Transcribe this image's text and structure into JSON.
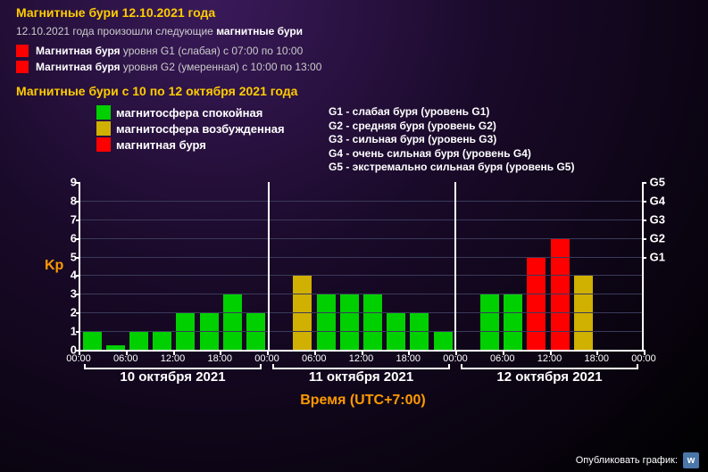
{
  "title_main": "Магнитные бури 12.10.2021 года",
  "intro_prefix": "12.10.2021 года произошли следующие ",
  "intro_bold": "магнитные бури",
  "events": [
    {
      "color": "#ff0000",
      "bold": "Магнитная буря",
      "rest": " уровня G1 (слабая) с 07:00 по 10:00"
    },
    {
      "color": "#ff0000",
      "bold": "Магнитная буря",
      "rest": " уровня G2 (умеренная) с 10:00 по 13:00"
    }
  ],
  "subtitle": "Магнитные бури с 10 по 12 октября 2021 года",
  "legend_left": [
    {
      "color": "#00d000",
      "label": "магнитосфера спокойная"
    },
    {
      "color": "#d0b000",
      "label": "магнитосфера возбужденная"
    },
    {
      "color": "#ff0000",
      "label": "магнитная буря"
    }
  ],
  "legend_right": [
    "G1 - слабая буря (уровень G1)",
    "G2 - средняя буря (уровень G2)",
    "G3 - сильная буря (уровень G3)",
    "G4 - очень сильная буря (уровень G4)",
    "G5 - экстремально сильная буря (уровень G5)"
  ],
  "chart": {
    "type": "bar",
    "y_label": "Kp",
    "x_label": "Время (UTC+7:00)",
    "y_max": 9,
    "y_ticks": [
      0,
      1,
      2,
      3,
      4,
      5,
      6,
      7,
      8,
      9
    ],
    "g_ticks": [
      {
        "v": 5,
        "label": "G1"
      },
      {
        "v": 6,
        "label": "G2"
      },
      {
        "v": 7,
        "label": "G3"
      },
      {
        "v": 8,
        "label": "G4"
      },
      {
        "v": 9,
        "label": "G5"
      }
    ],
    "grid_color": "#3a3a5a",
    "axis_color": "#ffffff",
    "kp_label_color": "#ff9900",
    "days": 3,
    "day_labels": [
      "10 октября 2021",
      "11 октября 2021",
      "12 октября 2021"
    ],
    "hour_ticks": [
      "00:00",
      "06:00",
      "12:00",
      "18:00",
      "00:00",
      "06:00",
      "12:00",
      "18:00",
      "00:00",
      "06:00",
      "12:00",
      "18:00",
      "00:00"
    ],
    "bars": [
      {
        "v": 1.0,
        "c": "#00d000"
      },
      {
        "v": 0.25,
        "c": "#00d000"
      },
      {
        "v": 1.0,
        "c": "#00d000"
      },
      {
        "v": 1.0,
        "c": "#00d000"
      },
      {
        "v": 2.0,
        "c": "#00d000"
      },
      {
        "v": 2.0,
        "c": "#00d000"
      },
      {
        "v": 3.0,
        "c": "#00d000"
      },
      {
        "v": 2.0,
        "c": "#00d000"
      },
      {
        "v": 0,
        "c": "#00d000"
      },
      {
        "v": 4.0,
        "c": "#d0b000"
      },
      {
        "v": 3.0,
        "c": "#00d000"
      },
      {
        "v": 3.0,
        "c": "#00d000"
      },
      {
        "v": 3.0,
        "c": "#00d000"
      },
      {
        "v": 2.0,
        "c": "#00d000"
      },
      {
        "v": 2.0,
        "c": "#00d000"
      },
      {
        "v": 1.0,
        "c": "#00d000"
      },
      {
        "v": 0,
        "c": "#00d000"
      },
      {
        "v": 3.0,
        "c": "#00d000"
      },
      {
        "v": 3.0,
        "c": "#00d000"
      },
      {
        "v": 5.0,
        "c": "#ff0000"
      },
      {
        "v": 6.0,
        "c": "#ff0000"
      },
      {
        "v": 4.0,
        "c": "#d0b000"
      },
      {
        "v": 0,
        "c": "#00d000"
      },
      {
        "v": 0,
        "c": "#00d000"
      }
    ]
  },
  "footer_label": "Опубликовать график:",
  "vk_glyph": "w"
}
